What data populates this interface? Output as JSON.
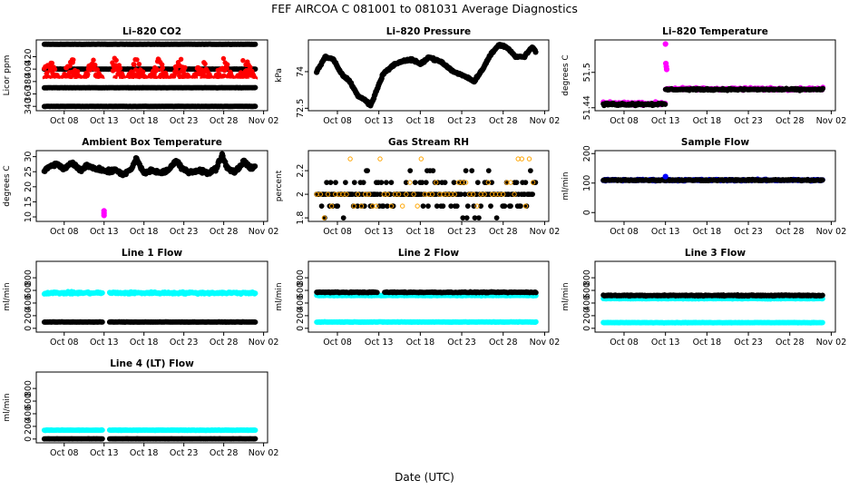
{
  "page": {
    "title": "FEF   AIRCOA C   081001 to 081031   Average Diagnostics",
    "xlabel": "Date (UTC)"
  },
  "chart_data": [
    {
      "type": "scatter",
      "title": "Li–820 CO2",
      "ylabel": "Licor ppm",
      "ylim": [
        333,
        447
      ],
      "yticks": [
        340,
        360,
        380,
        400,
        420
      ],
      "xticks": [
        "Oct 08",
        "Oct 13",
        "Oct 18",
        "Oct 23",
        "Oct 28",
        "Nov 02"
      ],
      "series": [
        {
          "color": "#000000",
          "gen": "flat",
          "level": 440,
          "noise": 0.3
        },
        {
          "color": "#000000",
          "gen": "flat",
          "level": 340,
          "noise": 0.3
        },
        {
          "color": "#000000",
          "gen": "flat",
          "level": 370,
          "noise": 0.3
        },
        {
          "color": "#000000",
          "gen": "flat",
          "level": 400,
          "noise": 0.3
        },
        {
          "color": "#ff0000",
          "gen": "band",
          "lo": 374,
          "hi": 418,
          "gap": [
            12.8,
            14
          ]
        },
        {
          "color": "#ffffff",
          "gen": "flat",
          "level": 380,
          "noise": 1.5
        }
      ]
    },
    {
      "type": "line",
      "title": "Li–820 Pressure",
      "ylabel": "kPa",
      "ylim": [
        72.4,
        75.3
      ],
      "yticks": [
        72.5,
        74.0
      ],
      "xticks": [
        "Oct 08",
        "Oct 13",
        "Oct 18",
        "Oct 23",
        "Oct 28",
        "Nov 02"
      ],
      "series": [
        {
          "color": "#000000",
          "gen": "path",
          "points": [
            [
              5.5,
              74.0
            ],
            [
              6.5,
              74.6
            ],
            [
              7.5,
              74.5
            ],
            [
              8.5,
              73.9
            ],
            [
              9.5,
              73.6
            ],
            [
              10.5,
              73.0
            ],
            [
              11.5,
              72.8
            ],
            [
              12,
              72.6
            ],
            [
              13.5,
              73.9
            ],
            [
              14.5,
              74.2
            ],
            [
              15.5,
              74.4
            ],
            [
              17,
              74.5
            ],
            [
              18,
              74.3
            ],
            [
              19,
              74.6
            ],
            [
              20.5,
              74.4
            ],
            [
              22,
              74.0
            ],
            [
              23.5,
              73.8
            ],
            [
              24.5,
              73.6
            ],
            [
              25.5,
              74.1
            ],
            [
              26.5,
              74.7
            ],
            [
              27.5,
              75.1
            ],
            [
              28.5,
              75.0
            ],
            [
              29.5,
              74.6
            ],
            [
              30.5,
              74.6
            ],
            [
              31.5,
              75.0
            ],
            [
              32,
              74.8
            ]
          ],
          "jitter": 0.06
        }
      ]
    },
    {
      "type": "scatter",
      "title": "Li–820 Temperature",
      "ylabel": "degrees C",
      "ylim": [
        51.435,
        51.555
      ],
      "yticks": [
        51.44,
        51.5
      ],
      "xticks": [
        "Oct 08",
        "Oct 13",
        "Oct 18",
        "Oct 23",
        "Oct 28",
        "Nov 02"
      ],
      "series": [
        {
          "color": "#ff00ff",
          "gen": "flat",
          "level": 51.447,
          "noise": 0.004,
          "x0": 5.5,
          "x1": 13
        },
        {
          "color": "#ff00ff",
          "gen": "flat",
          "level": 51.472,
          "noise": 0.003,
          "x0": 13,
          "x1": 32
        },
        {
          "color": "#000000",
          "gen": "flat",
          "level": 51.446,
          "noise": 0.003,
          "x0": 5.5,
          "x1": 13
        },
        {
          "color": "#000000",
          "gen": "flat",
          "level": 51.471,
          "noise": 0.002,
          "x0": 13,
          "x1": 32
        },
        {
          "color": "#ff00ff",
          "gen": "points",
          "pts": [
            [
              13,
              51.548
            ],
            [
              13.05,
              51.515
            ],
            [
              13.1,
              51.51
            ],
            [
              13.15,
              51.505
            ]
          ]
        }
      ]
    },
    {
      "type": "line",
      "title": "Ambient Box Temperature",
      "ylabel": "degrees C",
      "ylim": [
        8.5,
        32
      ],
      "yticks": [
        10,
        15,
        20,
        25,
        30
      ],
      "xticks": [
        "Oct 08",
        "Oct 13",
        "Oct 18",
        "Oct 23",
        "Oct 28",
        "Nov 02"
      ],
      "series": [
        {
          "color": "#ff00ff",
          "gen": "points",
          "pts": [
            [
              13,
              11.2
            ],
            [
              13,
              12.0
            ],
            [
              13,
              10.5
            ]
          ]
        },
        {
          "color": "#000000",
          "gen": "path",
          "points": [
            [
              5.5,
              25
            ],
            [
              6,
              26.5
            ],
            [
              7,
              27.5
            ],
            [
              8,
              26
            ],
            [
              9,
              27.8
            ],
            [
              10,
              25.5
            ],
            [
              11,
              27
            ],
            [
              12,
              26
            ],
            [
              13.5,
              25
            ],
            [
              14.5,
              25.5
            ],
            [
              15.5,
              24
            ],
            [
              16.5,
              26
            ],
            [
              17,
              29.5
            ],
            [
              18,
              24.5
            ],
            [
              19,
              25.5
            ],
            [
              20,
              24.5
            ],
            [
              21,
              25.5
            ],
            [
              22,
              28.5
            ],
            [
              23,
              25.5
            ],
            [
              24,
              25
            ],
            [
              25,
              25.5
            ],
            [
              26,
              24.5
            ],
            [
              27,
              26
            ],
            [
              27.8,
              30.5
            ],
            [
              28.5,
              26
            ],
            [
              29.5,
              25
            ],
            [
              30.5,
              28.5
            ],
            [
              31.5,
              26
            ],
            [
              32,
              26.5
            ]
          ],
          "jitter": 0.9
        }
      ]
    },
    {
      "type": "scatter",
      "title": "Gas Stream RH",
      "ylabel": "percent",
      "ylim": [
        1.77,
        2.37
      ],
      "yticks": [
        1.8,
        2.0,
        2.2
      ],
      "xticks": [
        "Oct 08",
        "Oct 13",
        "Oct 18",
        "Oct 23",
        "Oct 28",
        "Nov 02"
      ],
      "series": [
        {
          "color": "#000000",
          "gen": "steps",
          "levels": [
            2.0,
            2.1,
            1.9,
            2.2,
            1.8
          ],
          "x0": 5.5,
          "x1": 32
        },
        {
          "color": "#ffa500",
          "gen": "steps",
          "levels": [
            2.0,
            2.1,
            1.9,
            2.3,
            1.8
          ],
          "x0": 5.5,
          "x1": 32,
          "sparse": true
        }
      ]
    },
    {
      "type": "scatter",
      "title": "Sample Flow",
      "ylabel": "ml/min",
      "ylim": [
        -30,
        210
      ],
      "yticks": [
        0,
        100,
        200
      ],
      "xticks": [
        "Oct 08",
        "Oct 13",
        "Oct 18",
        "Oct 23",
        "Oct 28",
        "Nov 02"
      ],
      "series": [
        {
          "color": "#0000ff",
          "gen": "flat",
          "level": 110,
          "noise": 4
        },
        {
          "color": "#000000",
          "gen": "flat",
          "level": 110,
          "noise": 3
        },
        {
          "color": "#0000ff",
          "gen": "points",
          "pts": [
            [
              13,
              122
            ]
          ]
        }
      ]
    },
    {
      "type": "scatter",
      "title": "Line 1 Flow",
      "ylabel": "ml/min",
      "ylim": [
        -60,
        1060
      ],
      "yticks": [
        0,
        200,
        400,
        600,
        800
      ],
      "xticks": [
        "Oct 08",
        "Oct 13",
        "Oct 18",
        "Oct 23",
        "Oct 28",
        "Nov 02"
      ],
      "series": [
        {
          "color": "#00ffff",
          "gen": "flat",
          "level": 560,
          "noise": 25,
          "gap": [
            12.8,
            13.6
          ]
        },
        {
          "color": "#000000",
          "gen": "flat",
          "level": 100,
          "noise": 4,
          "gap": [
            12.8,
            13.6
          ]
        }
      ]
    },
    {
      "type": "scatter",
      "title": "Line 2 Flow",
      "ylabel": "ml/min",
      "ylim": [
        -60,
        1060
      ],
      "yticks": [
        0,
        200,
        400,
        600,
        800
      ],
      "xticks": [
        "Oct 08",
        "Oct 13",
        "Oct 18",
        "Oct 23",
        "Oct 28",
        "Nov 02"
      ],
      "series": [
        {
          "color": "#00ffff",
          "gen": "flat",
          "level": 520,
          "noise": 8
        },
        {
          "color": "#000000",
          "gen": "flat",
          "level": 570,
          "noise": 10,
          "gap": [
            12.8,
            13.6
          ]
        },
        {
          "color": "#00ffff",
          "gen": "flat",
          "level": 100,
          "noise": 6
        }
      ]
    },
    {
      "type": "scatter",
      "title": "Line 3 Flow",
      "ylabel": "ml/min",
      "ylim": [
        -60,
        1060
      ],
      "yticks": [
        0,
        200,
        400,
        600,
        800
      ],
      "xticks": [
        "Oct 08",
        "Oct 13",
        "Oct 18",
        "Oct 23",
        "Oct 28",
        "Nov 02"
      ],
      "series": [
        {
          "color": "#00ffff",
          "gen": "flat",
          "level": 470,
          "noise": 8
        },
        {
          "color": "#000000",
          "gen": "flat",
          "level": 520,
          "noise": 12
        },
        {
          "color": "#00ffff",
          "gen": "flat",
          "level": 90,
          "noise": 5
        }
      ]
    },
    {
      "type": "scatter",
      "title": "Line 4 (LT) Flow",
      "ylabel": "ml/min",
      "ylim": [
        -60,
        1060
      ],
      "yticks": [
        0,
        200,
        400,
        600,
        800
      ],
      "xticks": [
        "Oct 08",
        "Oct 13",
        "Oct 18",
        "Oct 23",
        "Oct 28",
        "Nov 02"
      ],
      "series": [
        {
          "color": "#00ffff",
          "gen": "flat",
          "level": 140,
          "noise": 6,
          "gap": [
            12.8,
            13.6
          ]
        },
        {
          "color": "#000000",
          "gen": "flat",
          "level": 3,
          "noise": 2,
          "gap": [
            12.8,
            13.6
          ]
        }
      ]
    }
  ]
}
